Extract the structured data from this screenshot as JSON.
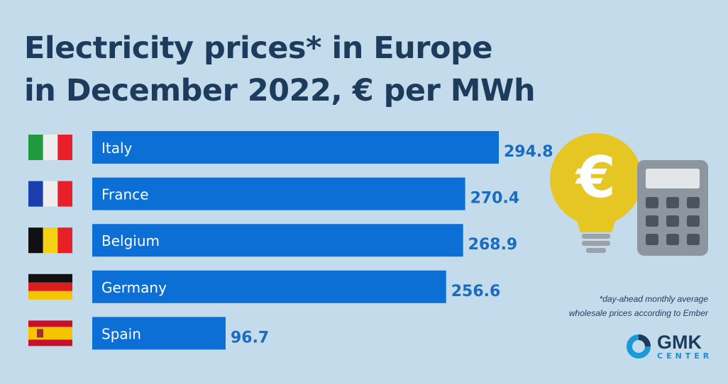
{
  "title_line1": "Electricity prices* in Europe",
  "title_line2": "in December 2022, € per MWh",
  "chart_data": {
    "type": "bar",
    "orientation": "horizontal",
    "title": "Electricity prices* in Europe in December 2022, € per MWh",
    "categories": [
      "Italy",
      "France",
      "Belgium",
      "Germany",
      "Spain"
    ],
    "values": [
      294.8,
      270.4,
      268.9,
      256.6,
      96.7
    ],
    "value_labels": [
      "294.8",
      "270.4",
      "268.9",
      "256.6",
      "96.7"
    ],
    "flags": [
      "italy-flag",
      "france-flag",
      "belgium-flag",
      "germany-flag",
      "spain-flag"
    ],
    "bar_color": "#0b6fd5",
    "label_color": "#1a6cc0",
    "grid": false
  },
  "footnote_line1": "*day-ahead monthly average",
  "footnote_line2": "wholesale prices according to Ember",
  "logo": {
    "name": "GMK",
    "sub": "CENTER"
  },
  "colors": {
    "background": "#c3dbeb",
    "title": "#1d3b5c"
  }
}
